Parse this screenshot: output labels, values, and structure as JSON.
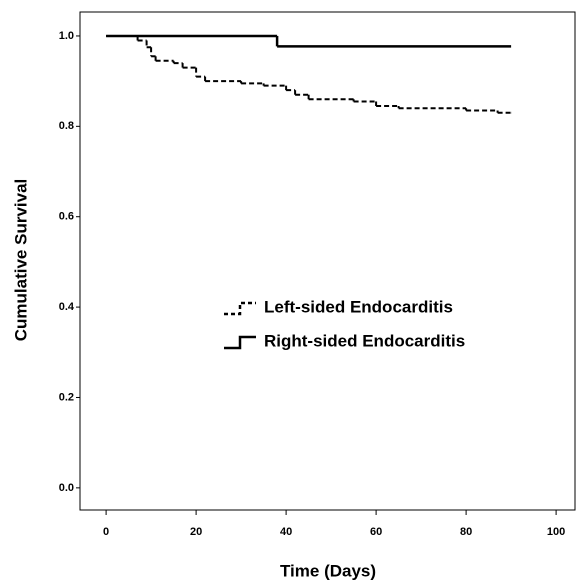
{
  "chart_data": {
    "type": "step",
    "x_label": "Time (Days)",
    "y_label": "Cumulative Survival",
    "xlim": [
      -5.8,
      104.2
    ],
    "ylim": [
      -0.049,
      1.053
    ],
    "xticks": [
      0,
      20,
      40,
      60,
      80,
      100
    ],
    "yticks": [
      {
        "value": 0,
        "label": "0.0"
      },
      0.2,
      0.4,
      0.6,
      0.8,
      {
        "value": 1,
        "label": "1.0"
      }
    ],
    "series": [
      {
        "name": "Left-sided Endocarditis",
        "color": "#000000",
        "dashed": true,
        "x": [
          0,
          7,
          9,
          10,
          11,
          15,
          17,
          20,
          22,
          30,
          35,
          40,
          42,
          45,
          55,
          60,
          65,
          80,
          87,
          90
        ],
        "values": [
          1.0,
          0.99,
          0.975,
          0.955,
          0.945,
          0.94,
          0.93,
          0.91,
          0.9,
          0.895,
          0.89,
          0.88,
          0.87,
          0.86,
          0.855,
          0.845,
          0.84,
          0.835,
          0.83,
          0.83
        ]
      },
      {
        "name": "Right-sided Endocarditis",
        "color": "#000000",
        "dashed": false,
        "x": [
          0,
          38,
          90
        ],
        "values": [
          1.0,
          0.977,
          0.977
        ]
      }
    ]
  }
}
